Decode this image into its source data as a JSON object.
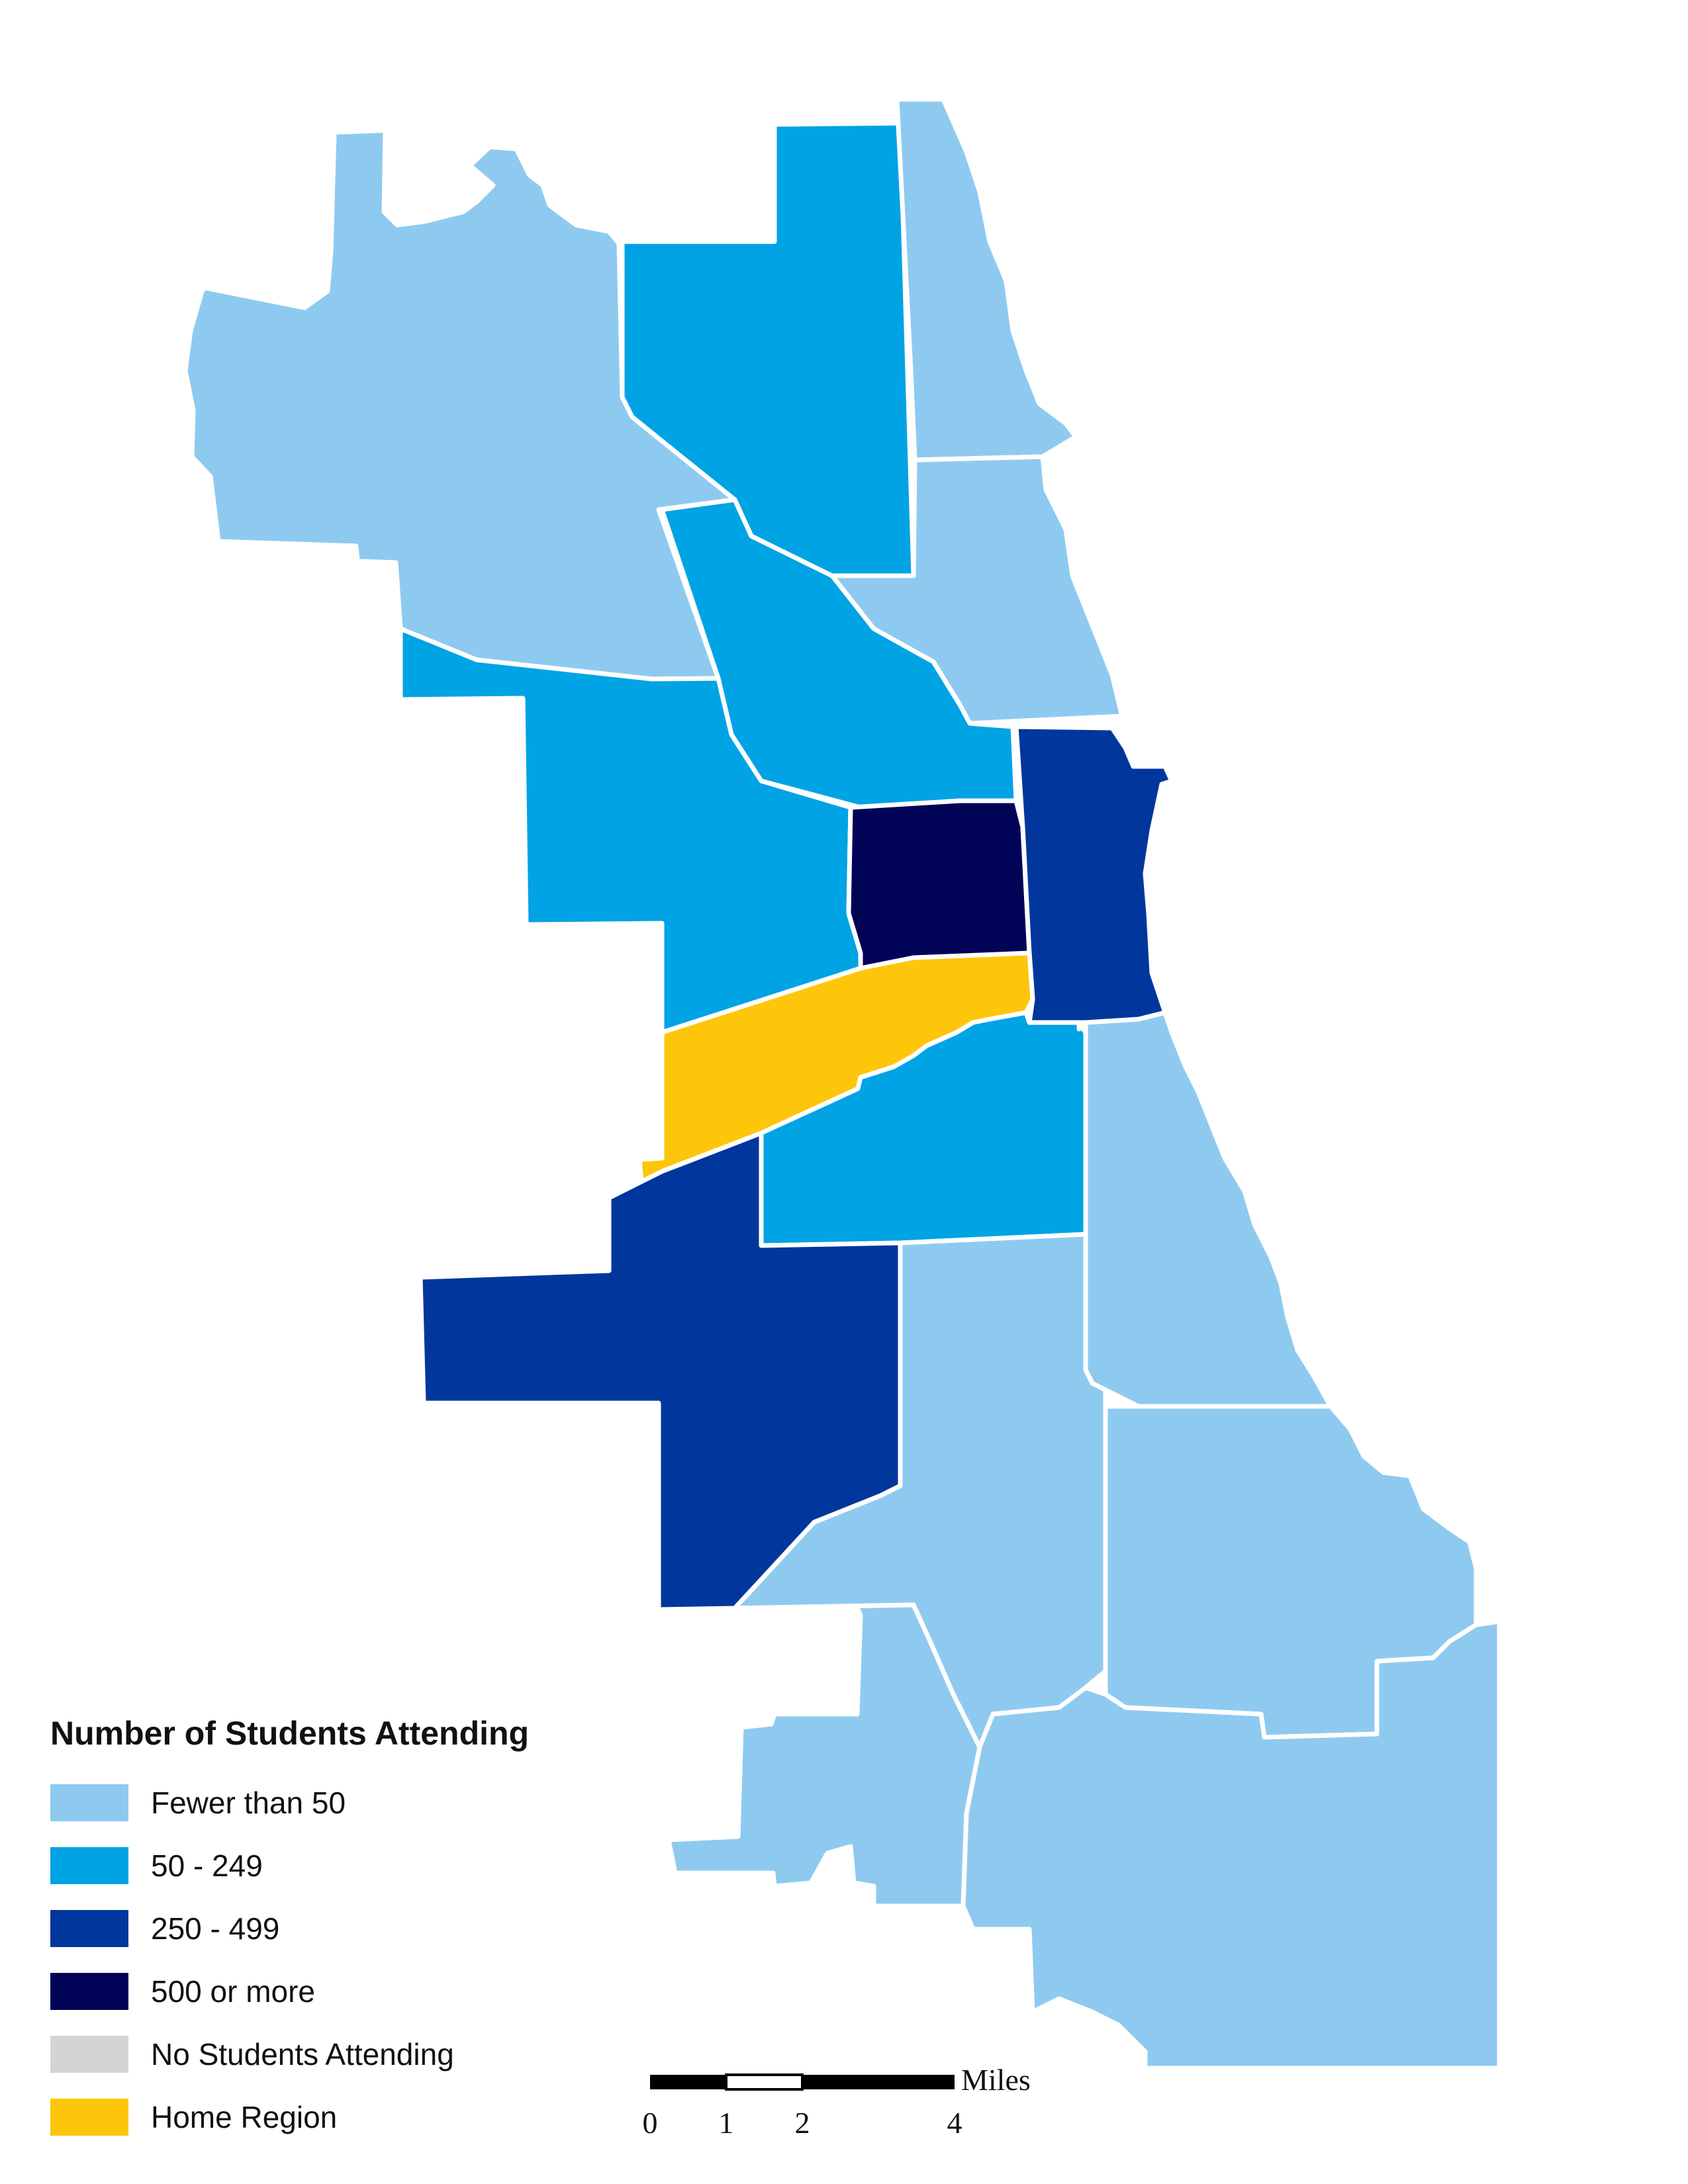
{
  "legend": {
    "title": "Number of Students Attending",
    "items": [
      {
        "label": "Fewer than 50",
        "color": "#8ecaf0"
      },
      {
        "label": "50 - 249",
        "color": "#00a3e4"
      },
      {
        "label": "250 - 499",
        "color": "#01379c"
      },
      {
        "label": "500 or more",
        "color": "#010357"
      },
      {
        "label": "No Students Attending",
        "color": "#d4d4d4"
      },
      {
        "label": "Home Region",
        "color": "#fdc60b"
      }
    ]
  },
  "scale_bar": {
    "unit": "Miles",
    "ticks": [
      "0",
      "1",
      "2",
      "4"
    ]
  },
  "regions": [
    {
      "id": "far-northwest",
      "category": "Fewer than 50"
    },
    {
      "id": "north-lakefront",
      "category": "Fewer than 50"
    },
    {
      "id": "north-central",
      "category": "Fewer than 50"
    },
    {
      "id": "north",
      "category": "50 - 249"
    },
    {
      "id": "near-northwest",
      "category": "50 - 249"
    },
    {
      "id": "west",
      "category": "50 - 249"
    },
    {
      "id": "near-west",
      "category": "500 or more"
    },
    {
      "id": "central",
      "category": "250 - 499"
    },
    {
      "id": "home",
      "category": "Home Region"
    },
    {
      "id": "near-southwest",
      "category": "50 - 249"
    },
    {
      "id": "southwest",
      "category": "250 - 499"
    },
    {
      "id": "south-lakefront",
      "category": "Fewer than 50"
    },
    {
      "id": "south-central",
      "category": "Fewer than 50"
    },
    {
      "id": "far-southwest",
      "category": "Fewer than 50"
    },
    {
      "id": "southeast",
      "category": "Fewer than 50"
    },
    {
      "id": "far-south",
      "category": "Fewer than 50"
    },
    {
      "id": "far-southeast",
      "category": "Fewer than 50"
    }
  ]
}
